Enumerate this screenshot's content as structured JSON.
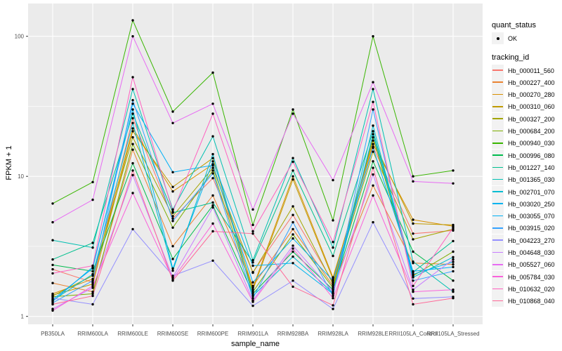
{
  "chart_data": {
    "type": "line",
    "xlabel": "sample_name",
    "ylabel": "FPKM + 1",
    "y_scale": "log10",
    "y_ticks": [
      1,
      10,
      100
    ],
    "y_minor_ticks": [
      3.162,
      31.62
    ],
    "ylim": [
      0.85,
      160
    ],
    "x_categories": [
      "PB350LA",
      "RRIM600LA",
      "RRIM600LE",
      "RRIM600SE",
      "RRIM600PE",
      "RRIM901LA",
      "RRIM928BA",
      "RRIM928LA",
      "RRIM928LE",
      "RRII105LA_Control",
      "RRII105LA_Stressed"
    ],
    "series": [
      {
        "name": "Hb_000011_560",
        "color": "#F8766D",
        "values": [
          2.17,
          1.75,
          26,
          5.0,
          9.7,
          2.07,
          5.3,
          1.75,
          16.3,
          3.9,
          4.1
        ]
      },
      {
        "name": "Hb_000227_400",
        "color": "#EA8331",
        "values": [
          1.73,
          1.5,
          15.5,
          3.17,
          7.3,
          1.65,
          4.2,
          1.65,
          8.6,
          2.4,
          2.35
        ]
      },
      {
        "name": "Hb_000270_280",
        "color": "#D89000",
        "values": [
          1.45,
          1.85,
          22,
          7.8,
          12.2,
          1.6,
          10.0,
          1.9,
          17,
          4.9,
          4.4
        ]
      },
      {
        "name": "Hb_000310_060",
        "color": "#C09B00",
        "values": [
          1.42,
          1.7,
          21,
          8.4,
          13.5,
          1.55,
          9.5,
          1.85,
          18,
          4.6,
          4.5
        ]
      },
      {
        "name": "Hb_000327_200",
        "color": "#A3A500",
        "values": [
          1.4,
          1.95,
          19,
          5.2,
          11.5,
          2.05,
          6.1,
          1.7,
          15,
          3.55,
          4.2
        ]
      },
      {
        "name": "Hb_000684_200",
        "color": "#7CAE00",
        "values": [
          1.38,
          1.45,
          17,
          4.3,
          11.0,
          1.5,
          3.85,
          1.6,
          19,
          1.95,
          2.9
        ]
      },
      {
        "name": "Hb_000940_030",
        "color": "#39B600",
        "values": [
          6.4,
          9.1,
          130,
          29,
          55,
          4.5,
          30,
          4.85,
          100,
          10.0,
          11.0
        ]
      },
      {
        "name": "Hb_000996_080",
        "color": "#00BB4E",
        "values": [
          2.33,
          2.1,
          12.4,
          2.57,
          6.2,
          1.45,
          2.9,
          1.55,
          12.8,
          2.9,
          1.8
        ]
      },
      {
        "name": "Hb_001227_140",
        "color": "#00C08E",
        "values": [
          2.55,
          3.35,
          28,
          5.5,
          6.5,
          2.43,
          11.0,
          2.7,
          21,
          2.07,
          3.45
        ]
      },
      {
        "name": "Hb_001365_030",
        "color": "#00C0B2",
        "values": [
          3.5,
          3.1,
          42,
          5.8,
          19.3,
          2.52,
          13.5,
          3.1,
          42,
          2.46,
          1.5
        ]
      },
      {
        "name": "Hb_002701_070",
        "color": "#00BDD2",
        "values": [
          1.3,
          2.0,
          24,
          2.12,
          14.4,
          1.4,
          2.67,
          1.47,
          23,
          1.9,
          2.65
        ]
      },
      {
        "name": "Hb_003020_250",
        "color": "#00B4EF",
        "values": [
          1.28,
          2.25,
          30,
          2.2,
          12.8,
          2.3,
          2.4,
          1.45,
          20,
          2.0,
          2.45
        ]
      },
      {
        "name": "Hb_003055_070",
        "color": "#00B0F6",
        "values": [
          1.32,
          2.2,
          33,
          10.7,
          12.0,
          1.75,
          3.6,
          1.8,
          16,
          2.1,
          2.25
        ]
      },
      {
        "name": "Hb_003915_020",
        "color": "#35A2FF",
        "values": [
          1.25,
          1.8,
          35,
          4.8,
          10.5,
          1.35,
          4.7,
          1.4,
          30,
          1.8,
          2.1
        ]
      },
      {
        "name": "Hb_004223_270",
        "color": "#9590FF",
        "values": [
          1.35,
          1.22,
          4.2,
          1.95,
          2.5,
          1.19,
          1.8,
          1.13,
          4.7,
          1.34,
          1.38
        ]
      },
      {
        "name": "Hb_004648_030",
        "color": "#C77CFF",
        "values": [
          1.13,
          1.6,
          10.2,
          1.9,
          6.0,
          1.3,
          3.2,
          1.5,
          10.3,
          1.55,
          2.55
        ]
      },
      {
        "name": "Hb_005527_060",
        "color": "#E76BF3",
        "values": [
          4.7,
          6.8,
          100,
          24,
          33,
          5.8,
          28,
          9.4,
          47,
          9.2,
          8.9
        ]
      },
      {
        "name": "Hb_005784_030",
        "color": "#FA62DB",
        "values": [
          1.1,
          1.65,
          7.6,
          1.85,
          4.6,
          1.27,
          3.05,
          1.35,
          7.3,
          1.5,
          1.55
        ]
      },
      {
        "name": "Hb_010632_020",
        "color": "#FF61C0",
        "values": [
          2.03,
          2.3,
          51,
          5.6,
          28,
          4.05,
          12.7,
          3.4,
          34,
          1.65,
          4.3
        ]
      },
      {
        "name": "Hb_010868_040",
        "color": "#FF6797",
        "values": [
          1.22,
          1.4,
          11,
          1.8,
          4.05,
          3.9,
          1.63,
          1.2,
          11.5,
          1.22,
          1.35
        ]
      }
    ],
    "legend_position": "right",
    "grid": true
  },
  "legend": {
    "quant_status_title": "quant_status",
    "quant_status_items": [
      "OK"
    ],
    "tracking_title": "tracking_id"
  },
  "colors": {
    "panel_background": "#EBEBEB",
    "gridline": "#FFFFFF",
    "tick_label": "#4D4D4D",
    "axis_title": "#000000",
    "point": "#000000",
    "legend_key_background": "#F2F2F2"
  }
}
